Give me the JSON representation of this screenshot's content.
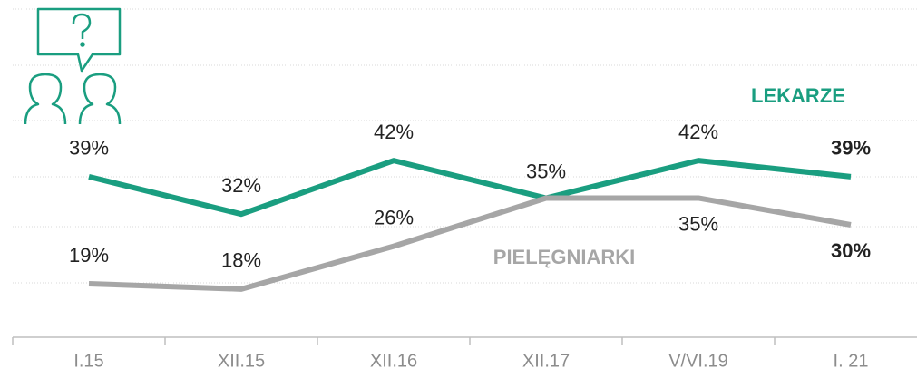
{
  "chart_data": {
    "type": "line",
    "categories": [
      "I.15",
      "XII.15",
      "XII.16",
      "XII.17",
      "V/VI.19",
      "I. 21"
    ],
    "series": [
      {
        "name": "LEKARZE",
        "color": "#1a9e80",
        "values": [
          39,
          32,
          42,
          35,
          42,
          39
        ],
        "value_labels": [
          "39%",
          "32%",
          "42%",
          "35%",
          "42%",
          "39%"
        ]
      },
      {
        "name": "PIELĘGNIARKI",
        "color": "#a6a6a6",
        "values": [
          19,
          18,
          26,
          35,
          35,
          30
        ],
        "value_labels": [
          "19%",
          "18%",
          "26%",
          null,
          "35%",
          "30%"
        ]
      }
    ],
    "ylim": [
      9,
      72
    ]
  }
}
